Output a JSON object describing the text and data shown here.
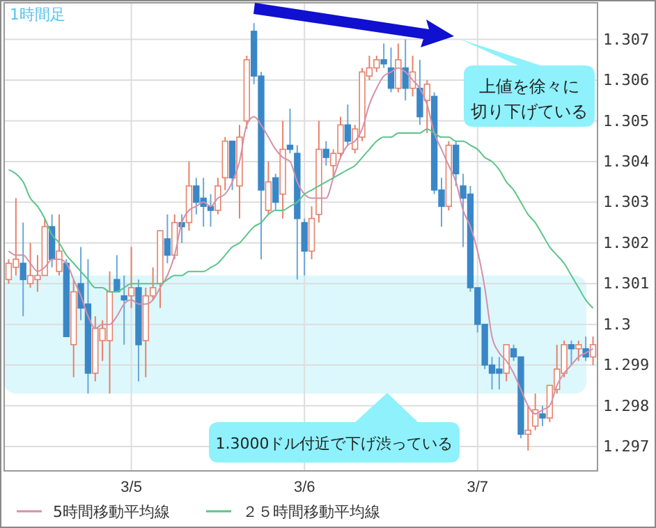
{
  "chart_data": {
    "type": "candlestick",
    "categories": [
      null,
      null,
      null,
      null,
      null,
      null,
      null,
      null,
      null,
      null,
      null,
      null,
      null,
      null,
      null,
      null,
      null,
      "3/5",
      null,
      null,
      null,
      null,
      null,
      null,
      null,
      null,
      null,
      null,
      null,
      null,
      null,
      null,
      null,
      null,
      null,
      null,
      null,
      null,
      null,
      null,
      null,
      "3/6",
      null,
      null,
      null,
      null,
      null,
      null,
      null,
      null,
      null,
      null,
      null,
      null,
      null,
      null,
      null,
      null,
      null,
      null,
      null,
      null,
      null,
      null,
      null,
      "3/7",
      null,
      null,
      null,
      null,
      null,
      null,
      null,
      null,
      null,
      null,
      null,
      null,
      null,
      null,
      null,
      null
    ],
    "ohlc": [
      [
        1.3011,
        1.3016,
        1.301,
        1.3015
      ],
      [
        1.3014,
        1.3031,
        1.3012,
        1.3016
      ],
      [
        1.3015,
        1.3025,
        1.3002,
        1.3011
      ],
      [
        1.301,
        1.302,
        1.3009,
        1.3012
      ],
      [
        1.3011,
        1.3017,
        1.3008,
        1.3012
      ],
      [
        1.3012,
        1.3026,
        1.3012,
        1.3024
      ],
      [
        1.3024,
        1.3027,
        1.3014,
        1.3016
      ],
      [
        1.3013,
        1.3027,
        1.3012,
        1.3018
      ],
      [
        1.3015,
        1.3016,
        1.2997,
        1.2997
      ],
      [
        1.2995,
        1.3011,
        1.2987,
        1.3008
      ],
      [
        1.301,
        1.3019,
        1.3001,
        1.3004
      ],
      [
        1.3005,
        1.3016,
        1.2983,
        1.2988
      ],
      [
        1.2988,
        1.3002,
        1.2986,
        1.2999
      ],
      [
        1.2996,
        1.3001,
        1.2991,
        1.2999
      ],
      [
        1.2996,
        1.3013,
        1.2983,
        1.3008
      ],
      [
        1.3011,
        1.3017,
        1.3008,
        1.3008
      ],
      [
        1.3007,
        1.3012,
        1.2995,
        1.3006
      ],
      [
        1.3007,
        1.3019,
        1.3004,
        1.3009
      ],
      [
        1.3009,
        1.3011,
        1.2986,
        1.2995
      ],
      [
        1.2996,
        1.3009,
        1.2987,
        1.3007
      ],
      [
        1.3007,
        1.3014,
        1.3006,
        1.3009
      ],
      [
        1.301,
        1.3023,
        1.3004,
        1.3023
      ],
      [
        1.3021,
        1.3027,
        1.3015,
        1.3017
      ],
      [
        1.3017,
        1.3027,
        1.3016,
        1.3025
      ],
      [
        1.3025,
        1.3027,
        1.302,
        1.3024
      ],
      [
        1.3025,
        1.304,
        1.3023,
        1.3034
      ],
      [
        1.3034,
        1.3036,
        1.3027,
        1.303
      ],
      [
        1.3031,
        1.3036,
        1.3024,
        1.3029
      ],
      [
        1.3029,
        1.3032,
        1.3024,
        1.3028
      ],
      [
        1.3028,
        1.3036,
        1.3027,
        1.3034
      ],
      [
        1.3036,
        1.3046,
        1.3033,
        1.3045
      ],
      [
        1.3045,
        1.3045,
        1.3033,
        1.3036
      ],
      [
        1.3034,
        1.3049,
        1.3026,
        1.3046
      ],
      [
        1.305,
        1.3066,
        1.3048,
        1.3065
      ],
      [
        1.3072,
        1.3074,
        1.3059,
        1.3061
      ],
      [
        1.3061,
        1.3062,
        1.3016,
        1.3033
      ],
      [
        1.3028,
        1.304,
        1.3027,
        1.3035
      ],
      [
        1.3036,
        1.3037,
        1.3028,
        1.303
      ],
      [
        1.3032,
        1.305,
        1.3026,
        1.3043
      ],
      [
        1.3044,
        1.3053,
        1.3042,
        1.3043
      ],
      [
        1.3042,
        1.3044,
        1.3011,
        1.3026
      ],
      [
        1.3025,
        1.3026,
        1.3012,
        1.3018
      ],
      [
        1.3018,
        1.3029,
        1.3016,
        1.3026
      ],
      [
        1.3027,
        1.305,
        1.3025,
        1.3043
      ],
      [
        1.3043,
        1.3045,
        1.3039,
        1.3041
      ],
      [
        1.3039,
        1.3043,
        1.3036,
        1.3042
      ],
      [
        1.3042,
        1.3051,
        1.3041,
        1.3049
      ],
      [
        1.3049,
        1.3054,
        1.3044,
        1.3045
      ],
      [
        1.3043,
        1.3049,
        1.3042,
        1.3048
      ],
      [
        1.3046,
        1.3063,
        1.3045,
        1.3062
      ],
      [
        1.3061,
        1.3066,
        1.306,
        1.3063
      ],
      [
        1.3063,
        1.3066,
        1.3062,
        1.3065
      ],
      [
        1.3065,
        1.3069,
        1.3063,
        1.3064
      ],
      [
        1.3063,
        1.3068,
        1.3057,
        1.3058
      ],
      [
        1.3058,
        1.3069,
        1.3057,
        1.3065
      ],
      [
        1.3063,
        1.307,
        1.3055,
        1.3058
      ],
      [
        1.3058,
        1.3066,
        1.3056,
        1.3062
      ],
      [
        1.3058,
        1.3065,
        1.3049,
        1.3051
      ],
      [
        1.3055,
        1.306,
        1.3047,
        1.3059
      ],
      [
        1.3056,
        1.3057,
        1.3032,
        1.3033
      ],
      [
        1.3033,
        1.3036,
        1.3024,
        1.3029
      ],
      [
        1.3029,
        1.3045,
        1.3028,
        1.3044
      ],
      [
        1.3044,
        1.3045,
        1.3034,
        1.3037
      ],
      [
        1.3034,
        1.3037,
        1.3019,
        1.3031
      ],
      [
        1.3032,
        1.3034,
        1.3008,
        1.3009
      ],
      [
        1.3009,
        1.3009,
        1.2998,
        1.3
      ],
      [
        1.3,
        1.3,
        1.2989,
        1.299
      ],
      [
        1.299,
        1.2992,
        1.2984,
        1.2988
      ],
      [
        1.2989,
        1.2992,
        1.2984,
        1.2988
      ],
      [
        1.2988,
        1.2995,
        1.2986,
        1.2995
      ],
      [
        1.2994,
        1.2995,
        1.2991,
        1.2992
      ],
      [
        1.2992,
        1.2992,
        1.2972,
        1.2973
      ],
      [
        1.2973,
        1.298,
        1.2969,
        1.2974
      ],
      [
        1.2975,
        1.2983,
        1.2974,
        1.2979
      ],
      [
        1.2978,
        1.298,
        1.2975,
        1.2977
      ],
      [
        1.2977,
        1.2985,
        1.2976,
        1.2985
      ],
      [
        1.2984,
        1.2995,
        1.2983,
        1.2989
      ],
      [
        1.2988,
        1.2996,
        1.2987,
        1.2995
      ],
      [
        1.2995,
        1.2996,
        1.299,
        1.2994
      ],
      [
        1.2994,
        1.2996,
        1.2991,
        1.2995
      ],
      [
        1.2994,
        1.2997,
        1.2991,
        1.2992
      ],
      [
        1.2992,
        1.2997,
        1.299,
        1.2995
      ]
    ],
    "series": [
      {
        "type": "line",
        "name": "5時間移動平均線",
        "color": "#d58fa8",
        "values": [
          1.3018,
          1.3017,
          1.3017,
          1.3015,
          1.3013,
          1.3014,
          1.3016,
          1.3016,
          1.3015,
          1.3011,
          1.3007,
          1.3002,
          1.2999,
          1.3,
          1.3,
          1.3002,
          1.3005,
          1.3006,
          1.3005,
          1.3005,
          1.3006,
          1.3009,
          1.3012,
          1.3017,
          1.3025,
          1.3028,
          1.3029,
          1.303,
          1.3029,
          1.3031,
          1.3032,
          1.3035,
          1.304,
          1.3049,
          1.3051,
          1.3049,
          1.3046,
          1.3043,
          1.3041,
          1.304,
          1.3035,
          1.3032,
          1.3031,
          1.3031,
          1.3031,
          1.3036,
          1.3041,
          1.3044,
          1.3045,
          1.3048,
          1.3054,
          1.3058,
          1.3061,
          1.3062,
          1.3063,
          1.3062,
          1.306,
          1.3058,
          1.3054,
          1.3047,
          1.3043,
          1.3039,
          1.3035,
          1.3028,
          1.3024,
          1.3018,
          1.3009,
          1.2997,
          1.2993,
          1.2991,
          1.2988,
          1.2984,
          1.298,
          1.2978,
          1.2979,
          1.298,
          1.2985,
          1.2988,
          1.299,
          1.2992,
          1.2993,
          1.2994
        ]
      },
      {
        "type": "line",
        "name": "２５時間移動平均線",
        "color": "#5cc48a",
        "values": [
          1.3038,
          1.3037,
          1.3035,
          1.3031,
          1.3029,
          1.3026,
          1.3022,
          1.302,
          1.3017,
          1.3015,
          1.3013,
          1.3011,
          1.3009,
          1.3009,
          1.3008,
          1.3008,
          1.3009,
          1.301,
          1.301,
          1.301,
          1.301,
          1.301,
          1.3011,
          1.3012,
          1.3012,
          1.3013,
          1.3013,
          1.3013,
          1.3014,
          1.3015,
          1.3017,
          1.3019,
          1.302,
          1.3022,
          1.3024,
          1.3025,
          1.3027,
          1.3028,
          1.3028,
          1.3029,
          1.303,
          1.3032,
          1.3033,
          1.3034,
          1.3035,
          1.3036,
          1.3037,
          1.3038,
          1.3039,
          1.3041,
          1.3043,
          1.3045,
          1.3046,
          1.3046,
          1.3047,
          1.3047,
          1.3047,
          1.3047,
          1.3048,
          1.3047,
          1.3046,
          1.3046,
          1.3045,
          1.3045,
          1.3044,
          1.3043,
          1.3041,
          1.304,
          1.3038,
          1.3035,
          1.3033,
          1.303,
          1.3027,
          1.3025,
          1.3022,
          1.3019,
          1.3017,
          1.3015,
          1.3012,
          1.3009,
          1.3006,
          1.3004
        ]
      }
    ],
    "ylim": [
      1.2964,
      1.3079
    ],
    "yticks": [
      1.297,
      1.298,
      1.299,
      1.3,
      1.301,
      1.302,
      1.303,
      1.304,
      1.305,
      1.306,
      1.307
    ],
    "grid": true,
    "legend": "bottom",
    "bands": [
      {
        "axis": "y",
        "from": 1.2983,
        "to": 1.3012,
        "color": "#dcf8fc"
      }
    ],
    "annotations": [
      "1時間足",
      "上値を徐々に切り下げている",
      "1.3000ドル付近で下げ渋っている"
    ]
  }
}
